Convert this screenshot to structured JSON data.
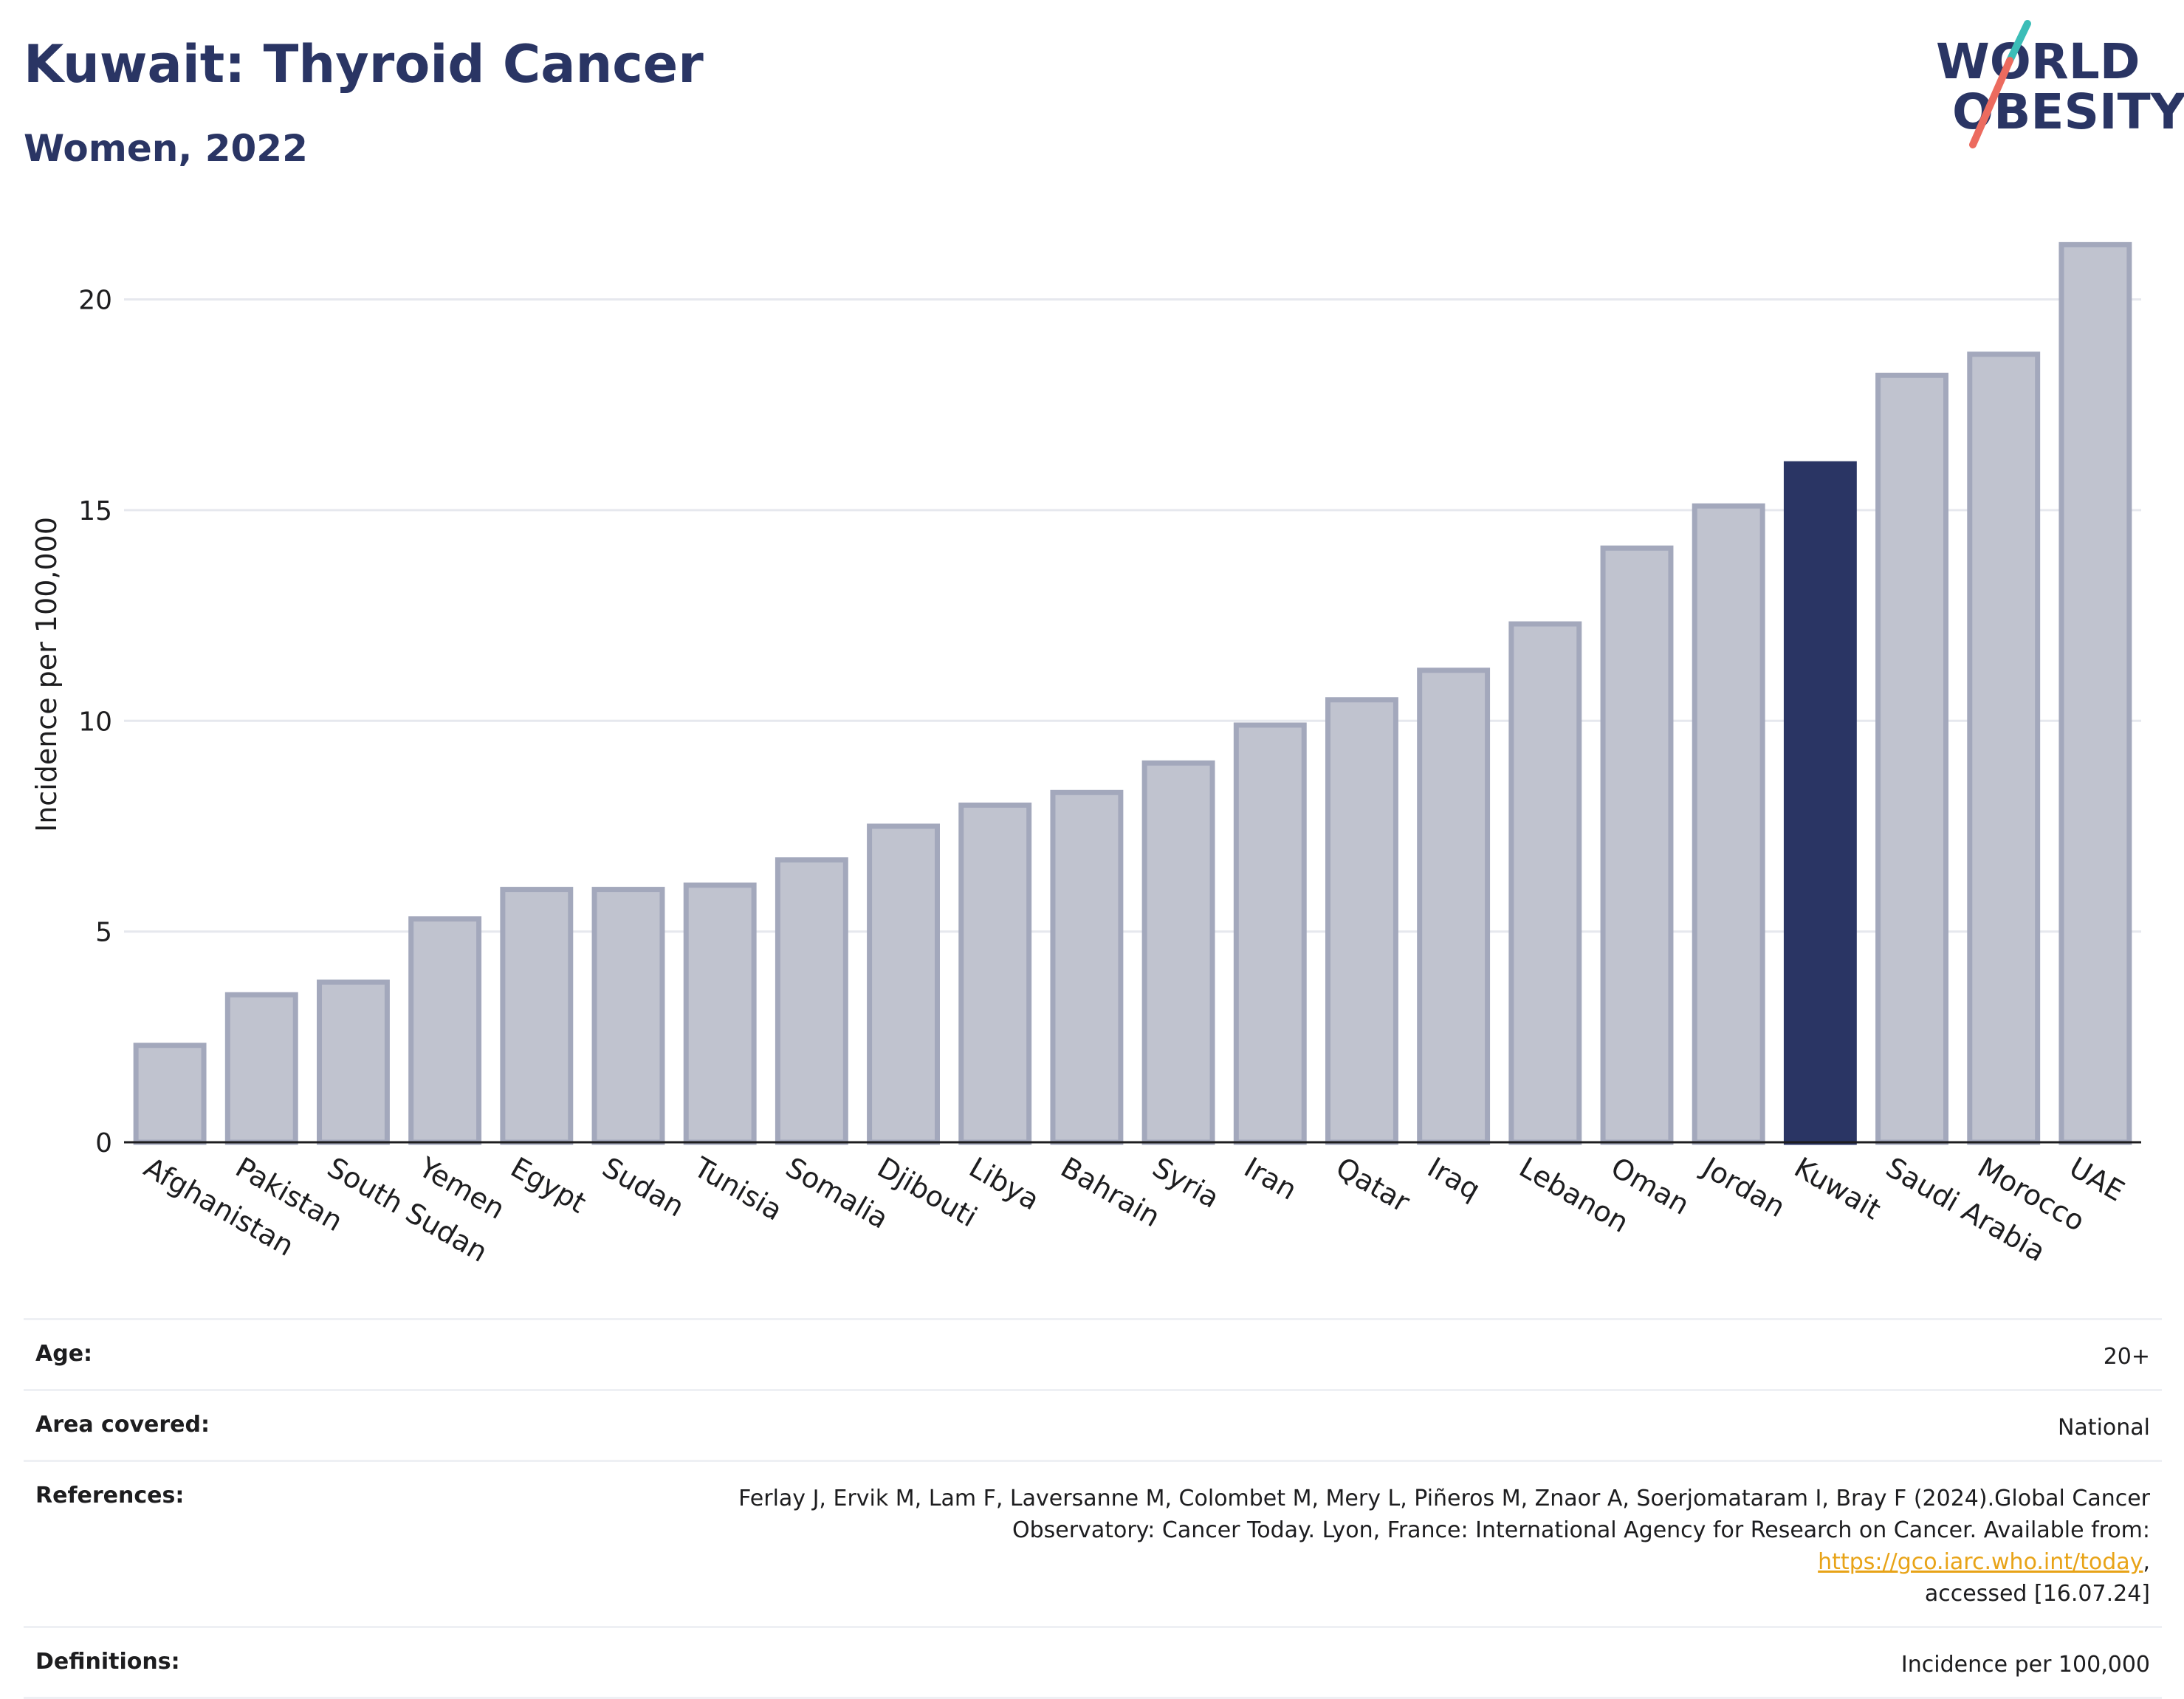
{
  "title": "Kuwait: Thyroid Cancer",
  "subtitle": "Women, 2022",
  "logo": {
    "line1": "WORLD",
    "line2": "OBESITY",
    "text_color": "#2a3564",
    "accent_teal": "#3bbdb7",
    "accent_coral": "#ec6b5f"
  },
  "colors": {
    "bar": "#c0c3cf",
    "bar_border": "#a3a8bc",
    "highlight": "#2a3564",
    "grid": "#e6e8ee",
    "axis": "#1d1d1f"
  },
  "chart_data": {
    "type": "bar",
    "categories": [
      "Afghanistan",
      "Pakistan",
      "South Sudan",
      "Yemen",
      "Egypt",
      "Sudan",
      "Tunisia",
      "Somalia",
      "Djibouti",
      "Libya",
      "Bahrain",
      "Syria",
      "Iran",
      "Qatar",
      "Iraq",
      "Lebanon",
      "Oman",
      "Jordan",
      "Kuwait",
      "Saudi Arabia",
      "Morocco",
      "UAE"
    ],
    "values": [
      2.3,
      3.5,
      3.8,
      5.3,
      6.0,
      6.0,
      6.1,
      6.7,
      7.5,
      8.0,
      8.3,
      9.0,
      9.9,
      10.5,
      11.2,
      12.3,
      14.1,
      15.1,
      16.1,
      18.2,
      18.7,
      21.3
    ],
    "highlight": "Kuwait",
    "ylabel": "Incidence per 100,000",
    "yticks": [
      0,
      5,
      10,
      15,
      20
    ],
    "ylim": [
      0,
      22.2
    ],
    "grid": true,
    "legend": "none"
  },
  "meta": {
    "age_label": "Age:",
    "age_value": "20+",
    "area_label": "Area covered:",
    "area_value": "National",
    "references_label": "References:",
    "references_line1": "Ferlay J, Ervik M, Lam F, Laversanne M, Colombet M, Mery L, Piñeros M, Znaor A, Soerjomataram I, Bray F (2024).Global Cancer",
    "references_line2_prefix": "Observatory: Cancer Today. Lyon, France: International Agency for Research on Cancer. Available from: ",
    "references_link": "https://gco.iarc.who.int/today",
    "references_line2_suffix": ",",
    "references_line3": "accessed [16.07.24]",
    "definitions_label": "Definitions:",
    "definitions_value": "Incidence per 100,000"
  }
}
